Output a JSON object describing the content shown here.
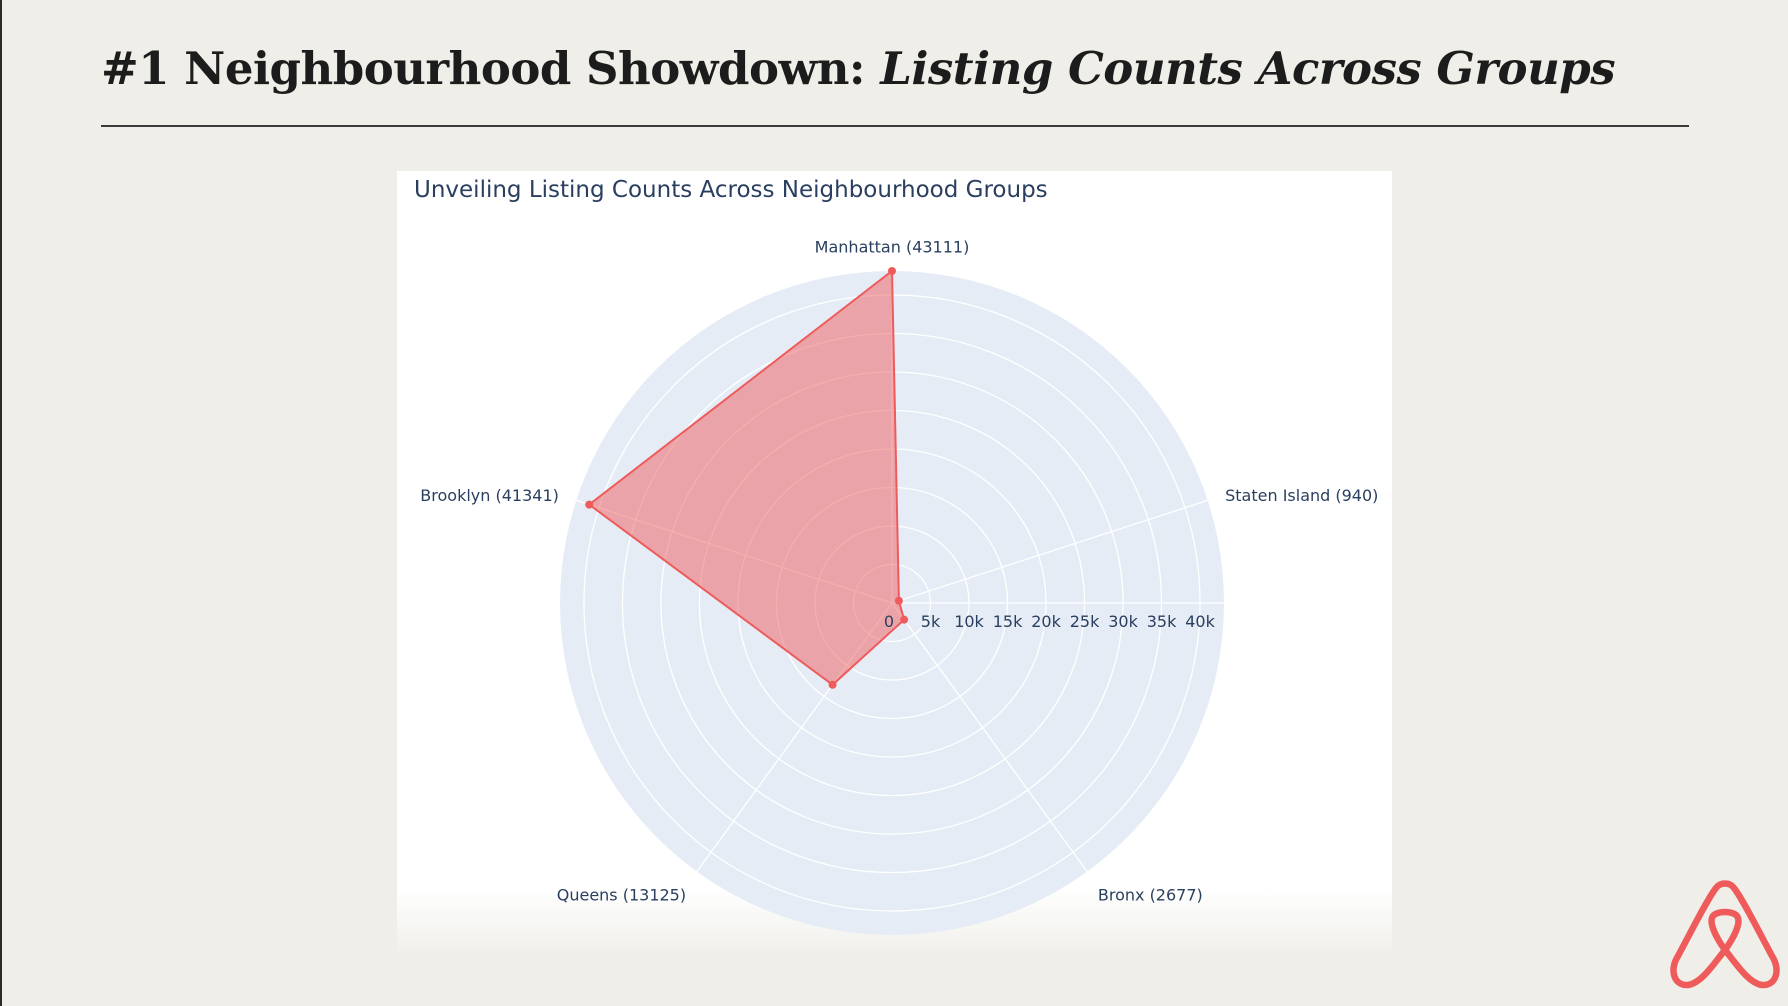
{
  "slide": {
    "title_prefix": "#1 Neighbourhood Showdown: ",
    "title_italic": "Listing Counts Across Groups"
  },
  "colors": {
    "background": "#efeee8",
    "accent": "#ef5b5b",
    "polar_background": "#e5ecf6",
    "text": "#2a3f5f"
  },
  "chart_data": {
    "type": "radar",
    "title": "Unveiling Listing Counts Across Neighbourhood Groups",
    "categories": [
      "Manhattan (43111)",
      "Staten Island (940)",
      "Bronx (2677)",
      "Queens (13125)",
      "Brooklyn (41341)"
    ],
    "series": [
      {
        "values": [
          43111,
          940,
          2677,
          13125,
          41341
        ],
        "color": "#ef5b5b",
        "fill": "toself"
      }
    ],
    "radial_axis": {
      "range": [
        0,
        43111
      ],
      "ticks": [
        0,
        5000,
        10000,
        15000,
        20000,
        25000,
        30000,
        35000,
        40000
      ],
      "tick_labels": [
        "0",
        "5k",
        "10k",
        "15k",
        "20k",
        "25k",
        "30k",
        "35k",
        "40k"
      ]
    },
    "grid": true
  },
  "logo": {
    "icon": "airbnb-logo-icon"
  }
}
